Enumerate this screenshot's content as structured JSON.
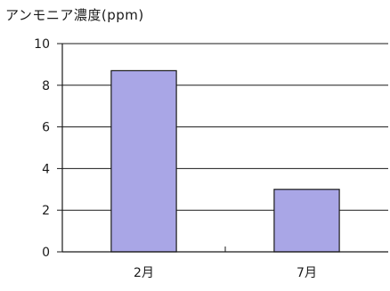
{
  "chart_data": {
    "type": "bar",
    "title": "アンモニア濃度(ppm)",
    "categories": [
      "2月",
      "7月"
    ],
    "values": [
      8.7,
      3.0
    ],
    "ylim": [
      0,
      10
    ],
    "yticks": [
      "0",
      "2",
      "4",
      "6",
      "8",
      "10"
    ],
    "xlabel": "",
    "ylabel": "",
    "grid": true,
    "legend": "none",
    "bar_color": "#a9a6e6",
    "bar_edge_color": "#1a1a1a"
  }
}
